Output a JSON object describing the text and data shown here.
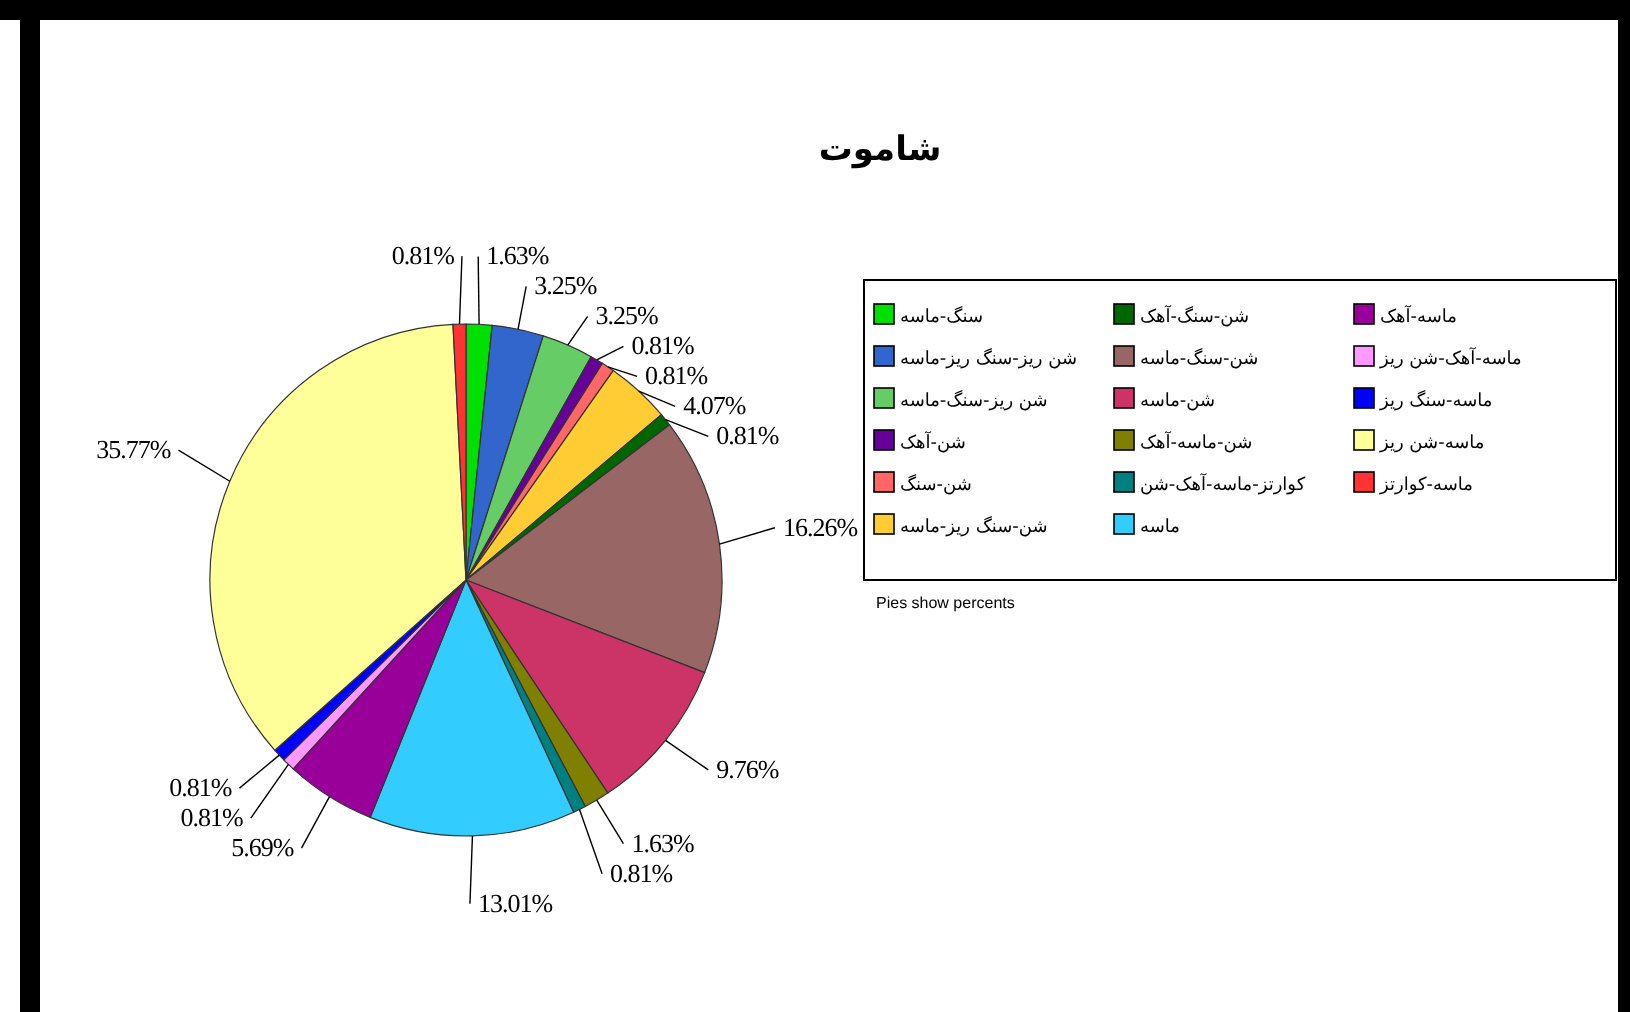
{
  "chart_data": {
    "type": "pie",
    "title": "شاموت",
    "categories": [
      "سنگ-ماسه",
      "شن ریز-سنگ ریز-ماسه",
      "شن ریز-سنگ-ماسه",
      "شن-آهک",
      "شن-سنگ",
      "شن-سنگ ریز-ماسه",
      "شن-سنگ-آهک",
      "شن-سنگ-ماسه",
      "شن-ماسه",
      "شن-ماسه-آهک",
      "کوارتز-ماسه-آهک-شن",
      "ماسه",
      "ماسه-آهک",
      "ماسه-آهک-شن ریز",
      "ماسه-سنگ ریز",
      "ماسه-شن ریز",
      "ماسه-کوارتز"
    ],
    "values": [
      1.63,
      3.25,
      3.25,
      0.81,
      0.81,
      4.07,
      0.81,
      16.26,
      9.76,
      1.63,
      0.81,
      13.01,
      5.69,
      0.81,
      0.81,
      35.77,
      0.81
    ],
    "colors": [
      "#00e000",
      "#3366cc",
      "#66cc66",
      "#660099",
      "#ff6666",
      "#ffcc33",
      "#006600",
      "#996666",
      "#cc3366",
      "#808000",
      "#008080",
      "#33ccff",
      "#990099",
      "#ff99ff",
      "#0000ff",
      "#ffff99",
      "#ff3333"
    ],
    "value_labels": [
      "1.63%",
      "3.25%",
      "3.25%",
      "0.81%",
      "0.81%",
      "4.07%",
      "0.81%",
      "16.26%",
      "9.76%",
      "1.63%",
      "0.81%",
      "13.01%",
      "5.69%",
      "0.81%",
      "0.81%",
      "35.77%",
      "0.81%"
    ],
    "legend": "right",
    "annotations": [
      "Pies show percents"
    ]
  }
}
